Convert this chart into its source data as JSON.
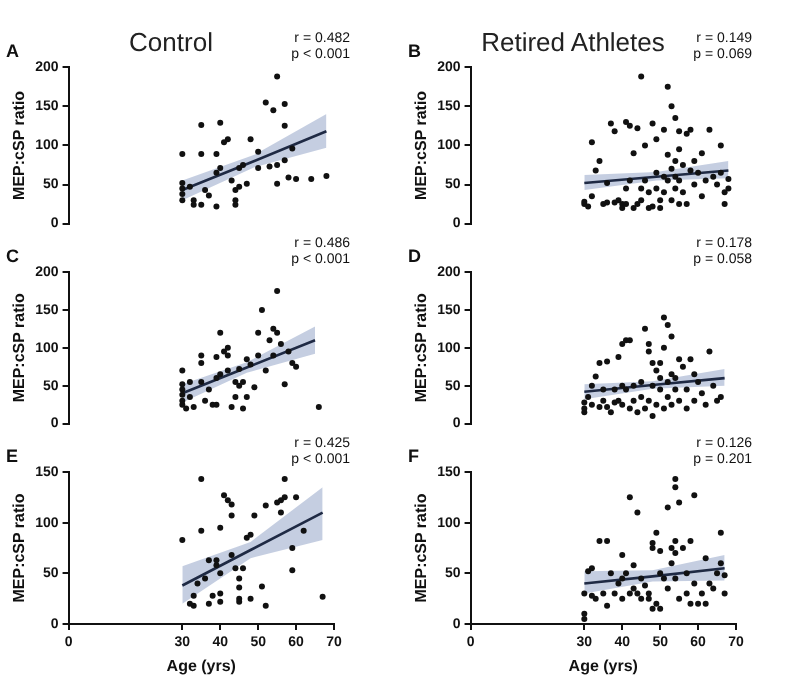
{
  "chart_data": [
    {
      "type": "scatter",
      "title": "Control",
      "annotations": [
        "A",
        "r = 0.482",
        "p < 0.001"
      ],
      "ylabel": "MEP:cSP ratio",
      "xlim": [
        0,
        70
      ],
      "xticks": [
        0,
        30,
        40,
        50,
        60,
        70
      ],
      "ylim": [
        0,
        200
      ],
      "yticks": [
        0,
        50,
        100,
        150,
        200
      ],
      "tick_labels": "y",
      "series": [
        {
          "type": "scatter",
          "marker": "circle",
          "color": "#111111",
          "x": [
            30,
            30,
            30,
            30,
            30,
            32,
            33,
            33,
            35,
            35,
            35,
            36,
            37,
            39,
            39,
            39,
            40,
            40,
            41,
            42,
            43,
            44,
            44,
            44,
            45,
            45,
            46,
            47,
            48,
            50,
            50,
            52,
            53,
            54,
            55,
            55,
            55,
            57,
            57,
            58,
            57,
            59,
            60,
            64,
            68
          ],
          "values": [
            89,
            52,
            45,
            38,
            30,
            47,
            30,
            24,
            126,
            89,
            24,
            43,
            36,
            89,
            22,
            65,
            71,
            129,
            104,
            108,
            55,
            43,
            30,
            24,
            47,
            71,
            75,
            51,
            108,
            71,
            92,
            155,
            73,
            145,
            188,
            51,
            75,
            125,
            153,
            59,
            81,
            96,
            57,
            57,
            61
          ]
        },
        {
          "type": "line",
          "color": "#1f2a44",
          "x": [
            30,
            49,
            68
          ],
          "values": [
            43,
            80,
            118
          ],
          "lower": [
            30,
            72,
            97
          ],
          "upper": [
            55,
            88,
            140
          ]
        }
      ]
    },
    {
      "type": "scatter",
      "title": "Retired Athletes",
      "annotations": [
        "B",
        "r = 0.149",
        "p = 0.069"
      ],
      "ylabel": "MEP:cSP ratio",
      "xlim": [
        0,
        70
      ],
      "xticks": [
        0,
        30,
        40,
        50,
        60,
        70
      ],
      "ylim": [
        0,
        200
      ],
      "yticks": [
        0,
        50,
        100,
        150,
        200
      ],
      "tick_labels": "y",
      "series": [
        {
          "type": "scatter",
          "marker": "circle",
          "color": "#111111",
          "x": [
            30,
            30,
            31,
            32,
            32,
            33,
            34,
            35,
            36,
            36,
            37,
            38,
            38,
            39,
            40,
            40,
            41,
            41,
            41,
            42,
            42,
            43,
            43,
            44,
            44,
            45,
            45,
            45,
            46,
            46,
            47,
            47,
            48,
            48,
            49,
            49,
            49,
            50,
            50,
            51,
            51,
            51,
            52,
            52,
            52,
            53,
            53,
            53,
            54,
            54,
            54,
            54,
            55,
            55,
            55,
            55,
            56,
            56,
            57,
            57,
            58,
            58,
            59,
            59,
            60,
            61,
            61,
            62,
            63,
            64,
            65,
            66,
            66,
            67,
            67,
            68,
            68
          ],
          "values": [
            25,
            28,
            22,
            35,
            104,
            68,
            80,
            25,
            27,
            52,
            128,
            118,
            27,
            30,
            25,
            20,
            130,
            45,
            25,
            125,
            55,
            90,
            20,
            122,
            25,
            188,
            45,
            30,
            55,
            100,
            20,
            40,
            128,
            22,
            65,
            45,
            108,
            20,
            30,
            120,
            60,
            40,
            175,
            88,
            55,
            30,
            70,
            150,
            135,
            45,
            60,
            80,
            118,
            95,
            55,
            25,
            75,
            40,
            25,
            115,
            68,
            120,
            50,
            80,
            65,
            90,
            35,
            55,
            120,
            60,
            50,
            100,
            65,
            25,
            40,
            45,
            57
          ]
        },
        {
          "type": "line",
          "color": "#1f2a44",
          "x": [
            30,
            49,
            68
          ],
          "values": [
            52,
            60,
            68
          ],
          "lower": [
            43,
            55,
            58
          ],
          "upper": [
            62,
            66,
            80
          ]
        }
      ]
    },
    {
      "type": "scatter",
      "annotations": [
        "C",
        "r = 0.486",
        "p < 0.001"
      ],
      "ylabel": "MEP:cSP ratio",
      "xlim": [
        0,
        70
      ],
      "xticks": [
        0,
        30,
        40,
        50,
        60,
        70
      ],
      "ylim": [
        0,
        200
      ],
      "yticks": [
        0,
        50,
        100,
        150,
        200
      ],
      "tick_labels": "y",
      "series": [
        {
          "type": "scatter",
          "marker": "circle",
          "color": "#111111",
          "x": [
            30,
            30,
            30,
            30,
            30,
            30,
            31,
            32,
            32,
            33,
            35,
            35,
            35,
            36,
            37,
            38,
            39,
            39,
            39,
            40,
            40,
            41,
            42,
            42,
            42,
            43,
            44,
            44,
            45,
            45,
            46,
            46,
            47,
            47,
            48,
            49,
            50,
            50,
            51,
            52,
            53,
            54,
            54,
            55,
            55,
            56,
            57,
            58,
            59,
            60,
            66
          ],
          "values": [
            70,
            52,
            45,
            38,
            30,
            25,
            20,
            55,
            35,
            22,
            90,
            80,
            55,
            30,
            45,
            25,
            88,
            60,
            25,
            120,
            65,
            95,
            100,
            90,
            70,
            22,
            55,
            35,
            72,
            50,
            55,
            20,
            85,
            35,
            78,
            48,
            120,
            90,
            150,
            70,
            110,
            125,
            90,
            175,
            120,
            105,
            52,
            95,
            80,
            75,
            22
          ]
        },
        {
          "type": "line",
          "color": "#1f2a44",
          "x": [
            30,
            47,
            65
          ],
          "values": [
            40,
            74,
            110
          ],
          "lower": [
            28,
            67,
            92
          ],
          "upper": [
            52,
            81,
            128
          ]
        }
      ]
    },
    {
      "type": "scatter",
      "annotations": [
        "D",
        "r = 0.178",
        "p = 0.058"
      ],
      "ylabel": "MEP:cSP ratio",
      "xlim": [
        0,
        70
      ],
      "xticks": [
        0,
        30,
        40,
        50,
        60,
        70
      ],
      "ylim": [
        0,
        200
      ],
      "yticks": [
        0,
        50,
        100,
        150,
        200
      ],
      "tick_labels": "y",
      "series": [
        {
          "type": "scatter",
          "marker": "circle",
          "color": "#111111",
          "x": [
            30,
            30,
            30,
            31,
            32,
            32,
            33,
            34,
            34,
            35,
            35,
            36,
            36,
            37,
            38,
            38,
            39,
            39,
            40,
            40,
            40,
            41,
            41,
            42,
            42,
            43,
            43,
            44,
            45,
            45,
            46,
            46,
            47,
            47,
            47,
            48,
            48,
            48,
            49,
            49,
            50,
            50,
            50,
            51,
            51,
            51,
            52,
            52,
            52,
            53,
            53,
            53,
            54,
            54,
            55,
            55,
            56,
            57,
            57,
            58,
            59,
            59,
            60,
            61,
            62,
            63,
            64,
            65,
            66
          ],
          "values": [
            28,
            20,
            15,
            35,
            50,
            25,
            62,
            22,
            80,
            45,
            30,
            82,
            22,
            15,
            45,
            28,
            88,
            30,
            105,
            50,
            25,
            110,
            45,
            110,
            20,
            50,
            30,
            15,
            55,
            35,
            20,
            125,
            105,
            95,
            30,
            80,
            50,
            10,
            70,
            25,
            80,
            45,
            60,
            140,
            100,
            20,
            130,
            55,
            35,
            115,
            65,
            25,
            45,
            60,
            85,
            30,
            75,
            45,
            20,
            85,
            65,
            30,
            55,
            40,
            25,
            95,
            50,
            30,
            35
          ]
        },
        {
          "type": "line",
          "color": "#1f2a44",
          "x": [
            30,
            48,
            67
          ],
          "values": [
            42,
            51,
            60
          ],
          "lower": [
            32,
            46,
            50
          ],
          "upper": [
            52,
            56,
            72
          ]
        }
      ]
    },
    {
      "type": "scatter",
      "annotations": [
        "E",
        "r = 0.425",
        "p < 0.001"
      ],
      "xlabel": "Age (yrs)",
      "ylabel": "MEP:cSP ratio",
      "xlim": [
        0,
        70
      ],
      "xticks": [
        0,
        30,
        40,
        50,
        60,
        70
      ],
      "ylim": [
        0,
        150
      ],
      "yticks": [
        0,
        50,
        100,
        150
      ],
      "series": [
        {
          "type": "scatter",
          "marker": "circle",
          "color": "#111111",
          "x": [
            30,
            32,
            33,
            33,
            34,
            35,
            35,
            36,
            37,
            37,
            38,
            39,
            39,
            40,
            40,
            40,
            40,
            41,
            42,
            43,
            43,
            43,
            44,
            45,
            45,
            45,
            45,
            46,
            47,
            48,
            48,
            49,
            51,
            52,
            52,
            55,
            56,
            56,
            57,
            57,
            59,
            59,
            60,
            62,
            67
          ],
          "values": [
            83,
            20,
            18,
            28,
            40,
            143,
            92,
            45,
            63,
            20,
            28,
            63,
            58,
            95,
            50,
            30,
            22,
            127,
            122,
            118,
            107,
            68,
            55,
            45,
            36,
            25,
            22,
            55,
            85,
            88,
            25,
            107,
            37,
            117,
            18,
            120,
            122,
            110,
            143,
            125,
            75,
            53,
            125,
            92,
            27
          ]
        },
        {
          "type": "line",
          "color": "#1f2a44",
          "x": [
            30,
            48,
            67
          ],
          "values": [
            38,
            73,
            110
          ],
          "lower": [
            20,
            65,
            83
          ],
          "upper": [
            57,
            81,
            135
          ]
        }
      ]
    },
    {
      "type": "scatter",
      "annotations": [
        "F",
        "r = 0.126",
        "p = 0.201"
      ],
      "xlabel": "Age (yrs)",
      "ylabel": "MEP:cSP ratio",
      "xlim": [
        0,
        70
      ],
      "xticks": [
        0,
        30,
        40,
        50,
        60,
        70
      ],
      "ylim": [
        0,
        150
      ],
      "yticks": [
        0,
        50,
        100,
        150
      ],
      "series": [
        {
          "type": "scatter",
          "marker": "circle",
          "color": "#111111",
          "x": [
            30,
            30,
            30,
            31,
            32,
            32,
            33,
            34,
            35,
            36,
            36,
            37,
            38,
            39,
            40,
            40,
            40,
            41,
            42,
            42,
            43,
            43,
            44,
            44,
            45,
            45,
            46,
            47,
            47,
            48,
            48,
            48,
            49,
            49,
            50,
            50,
            50,
            51,
            52,
            52,
            53,
            53,
            54,
            54,
            54,
            54,
            54,
            55,
            55,
            56,
            57,
            57,
            58,
            58,
            59,
            59,
            60,
            61,
            62,
            62,
            63,
            64,
            65,
            66,
            66,
            67,
            67
          ],
          "values": [
            30,
            10,
            5,
            52,
            55,
            28,
            25,
            82,
            30,
            82,
            18,
            50,
            30,
            40,
            68,
            45,
            25,
            50,
            125,
            30,
            58,
            35,
            110,
            30,
            45,
            25,
            38,
            25,
            30,
            80,
            75,
            15,
            90,
            20,
            72,
            50,
            15,
            45,
            115,
            35,
            75,
            60,
            143,
            135,
            82,
            70,
            45,
            120,
            25,
            75,
            50,
            30,
            82,
            20,
            127,
            40,
            20,
            30,
            65,
            20,
            40,
            35,
            50,
            90,
            60,
            30,
            48
          ]
        },
        {
          "type": "line",
          "color": "#1f2a44",
          "x": [
            30,
            48,
            67
          ],
          "values": [
            40,
            47,
            55
          ],
          "lower": [
            30,
            42,
            43
          ],
          "upper": [
            52,
            53,
            68
          ]
        }
      ]
    }
  ]
}
